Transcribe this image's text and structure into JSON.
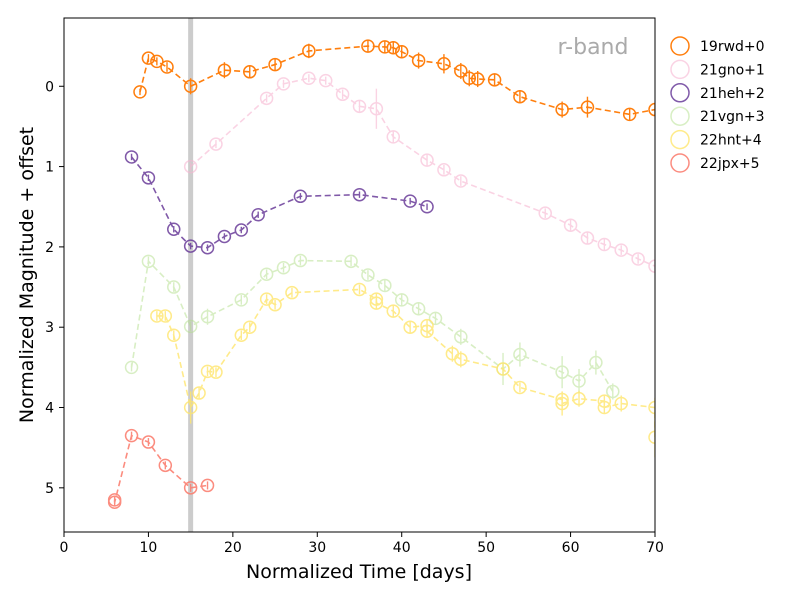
{
  "chart_data": {
    "type": "scatter",
    "band_label": "r-band",
    "xlabel": "Normalized Time [days]",
    "ylabel": "Normalized Magnitude + offset",
    "xlim": [
      0,
      70
    ],
    "ylim": [
      5.55,
      -0.85
    ],
    "y_inverted": true,
    "xticks": [
      0,
      10,
      20,
      30,
      40,
      50,
      60,
      70
    ],
    "yticks": [
      0,
      1,
      2,
      3,
      4,
      5
    ],
    "vertical_marker_x": 15,
    "legend_position": "upper-right-outside",
    "colors": {
      "marker_band": "#cccccc",
      "band_label": "#aaaaaa"
    },
    "series": [
      {
        "name": "19rwd+0",
        "color": "#ff7f0e",
        "alpha": 1.0,
        "x": [
          9,
          10,
          11,
          12.2,
          15,
          19,
          22,
          25,
          29,
          36,
          38,
          39,
          40,
          42,
          45,
          47,
          48,
          49,
          51,
          54,
          59,
          62,
          67,
          70
        ],
        "y": [
          0.07,
          -0.35,
          -0.31,
          -0.24,
          0.0,
          -0.2,
          -0.18,
          -0.27,
          -0.44,
          -0.5,
          -0.49,
          -0.48,
          -0.43,
          -0.32,
          -0.28,
          -0.19,
          -0.1,
          -0.09,
          -0.08,
          0.13,
          0.29,
          0.26,
          0.35,
          0.29
        ],
        "yerr": [
          0.04,
          0.05,
          0.05,
          0.06,
          0.1,
          0.1,
          0.08,
          0.08,
          0.09,
          0.08,
          0.08,
          0.08,
          0.08,
          0.1,
          0.12,
          0.1,
          0.1,
          0.1,
          0.08,
          0.08,
          0.1,
          0.13,
          0.08,
          0.08
        ]
      },
      {
        "name": "21gno+1",
        "color": "#f7b6d2",
        "alpha": 0.6,
        "x": [
          15,
          18,
          24,
          26,
          29,
          31,
          33,
          35,
          37,
          39,
          43,
          45,
          47,
          57,
          60,
          62,
          64,
          66,
          68,
          70
        ],
        "y": [
          1.0,
          0.72,
          0.15,
          -0.03,
          -0.1,
          -0.07,
          0.1,
          0.25,
          0.28,
          0.63,
          0.92,
          1.04,
          1.18,
          1.58,
          1.73,
          1.89,
          1.97,
          2.04,
          2.15,
          2.24
        ],
        "yerr": [
          0.05,
          0.05,
          0.05,
          0.05,
          0.05,
          0.05,
          0.06,
          0.07,
          0.25,
          0.08,
          0.07,
          0.06,
          0.06,
          0.06,
          0.07,
          0.07,
          0.07,
          0.06,
          0.06,
          0.06
        ]
      },
      {
        "name": "21heh+2",
        "color": "#6a3d9a",
        "alpha": 0.85,
        "x": [
          8,
          10,
          13,
          15,
          17,
          19,
          21,
          23,
          28,
          35,
          41,
          43
        ],
        "y": [
          0.88,
          1.14,
          1.78,
          1.99,
          2.01,
          1.87,
          1.79,
          1.6,
          1.37,
          1.35,
          1.43,
          1.5
        ],
        "yerr": [
          0.04,
          0.04,
          0.04,
          0.04,
          0.04,
          0.04,
          0.04,
          0.04,
          0.04,
          0.04,
          0.04,
          0.04
        ]
      },
      {
        "name": "21vgn+3",
        "color": "#b2df8a",
        "alpha": 0.5,
        "x": [
          8,
          10,
          13,
          15,
          17,
          21,
          24,
          26,
          28,
          34,
          36,
          38,
          40,
          42,
          44,
          47,
          52,
          54,
          59,
          61,
          63,
          65
        ],
        "y": [
          3.5,
          2.18,
          2.5,
          2.99,
          2.87,
          2.66,
          2.34,
          2.26,
          2.17,
          2.18,
          2.35,
          2.48,
          2.66,
          2.77,
          2.89,
          3.12,
          3.52,
          3.34,
          3.56,
          3.67,
          3.44,
          3.8
        ],
        "yerr": [
          0.05,
          0.06,
          0.06,
          0.06,
          0.1,
          0.06,
          0.06,
          0.06,
          0.06,
          0.06,
          0.06,
          0.08,
          0.08,
          0.08,
          0.08,
          0.1,
          0.2,
          0.15,
          0.2,
          0.15,
          0.15,
          0.1
        ]
      },
      {
        "name": "22hnt+4",
        "color": "#ffe66d",
        "alpha": 0.8,
        "x": [
          11,
          12,
          13,
          15,
          16,
          17,
          18,
          21,
          22,
          24,
          25,
          27,
          35,
          37,
          37,
          39,
          41,
          43,
          43,
          46,
          47,
          52,
          54,
          59,
          59,
          61,
          64,
          64,
          66,
          70,
          70
        ],
        "y": [
          2.86,
          2.86,
          3.1,
          4.0,
          3.82,
          3.55,
          3.56,
          3.1,
          3.0,
          2.65,
          2.72,
          2.57,
          2.53,
          2.65,
          2.7,
          2.8,
          3.0,
          2.98,
          3.05,
          3.33,
          3.4,
          3.52,
          3.75,
          3.9,
          3.95,
          3.89,
          3.92,
          4.0,
          3.95,
          4.0,
          4.37
        ],
        "yerr": [
          0.06,
          0.06,
          0.06,
          0.2,
          0.08,
          0.06,
          0.06,
          0.06,
          0.06,
          0.06,
          0.06,
          0.06,
          0.06,
          0.08,
          0.08,
          0.08,
          0.08,
          0.08,
          0.08,
          0.1,
          0.1,
          0.08,
          0.06,
          0.1,
          0.15,
          0.1,
          0.08,
          0.08,
          0.1,
          0.12,
          0.25
        ]
      },
      {
        "name": "22jpx+5",
        "color": "#fb8072",
        "alpha": 0.9,
        "x": [
          6,
          6,
          8,
          10,
          12,
          15,
          17
        ],
        "y": [
          5.15,
          5.18,
          4.35,
          4.43,
          4.72,
          5.0,
          4.97
        ],
        "yerr": [
          0.05,
          0.05,
          0.05,
          0.05,
          0.05,
          0.05,
          0.05
        ]
      }
    ]
  }
}
